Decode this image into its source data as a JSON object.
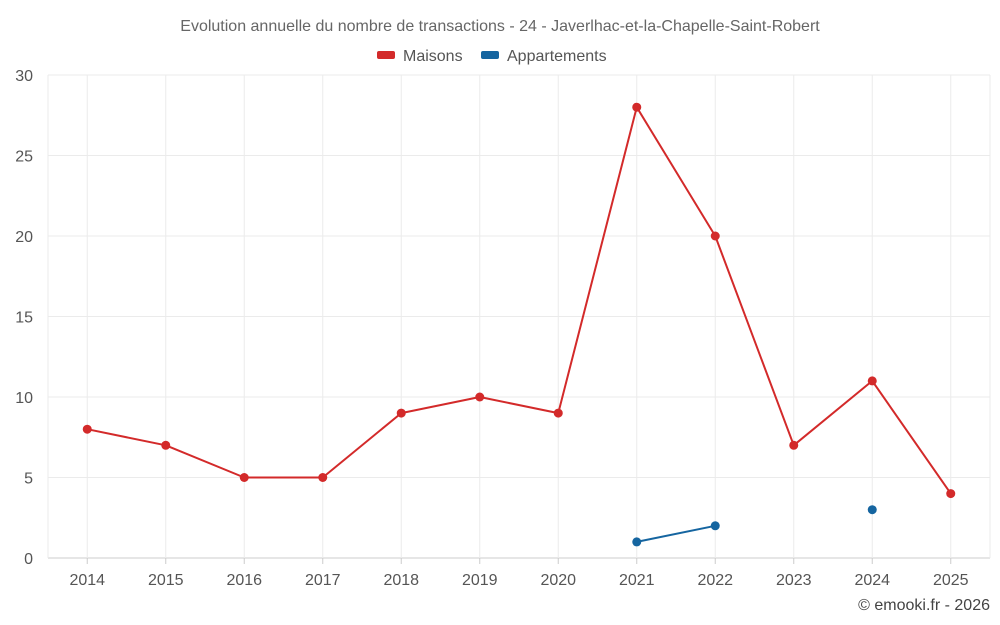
{
  "chart_data": {
    "type": "line",
    "title": "Evolution annuelle du nombre de transactions - 24 - Javerlhac-et-la-Chapelle-Saint-Robert",
    "categories": [
      "2014",
      "2015",
      "2016",
      "2017",
      "2018",
      "2019",
      "2020",
      "2021",
      "2022",
      "2023",
      "2024",
      "2025"
    ],
    "series": [
      {
        "name": "Maisons",
        "color": "#d32a2a",
        "values": [
          8,
          7,
          5,
          5,
          9,
          10,
          9,
          28,
          20,
          7,
          11,
          4
        ]
      },
      {
        "name": "Appartements",
        "color": "#1565a0",
        "values": [
          null,
          null,
          null,
          null,
          null,
          null,
          null,
          1,
          2,
          null,
          3,
          null
        ]
      }
    ],
    "ylim": [
      0,
      30
    ],
    "yticks": [
      0,
      5,
      10,
      15,
      20,
      25,
      30
    ],
    "xlabel": "",
    "ylabel": "",
    "legend": "top-center",
    "grid": true
  },
  "credit": "© emooki.fr - 2026"
}
